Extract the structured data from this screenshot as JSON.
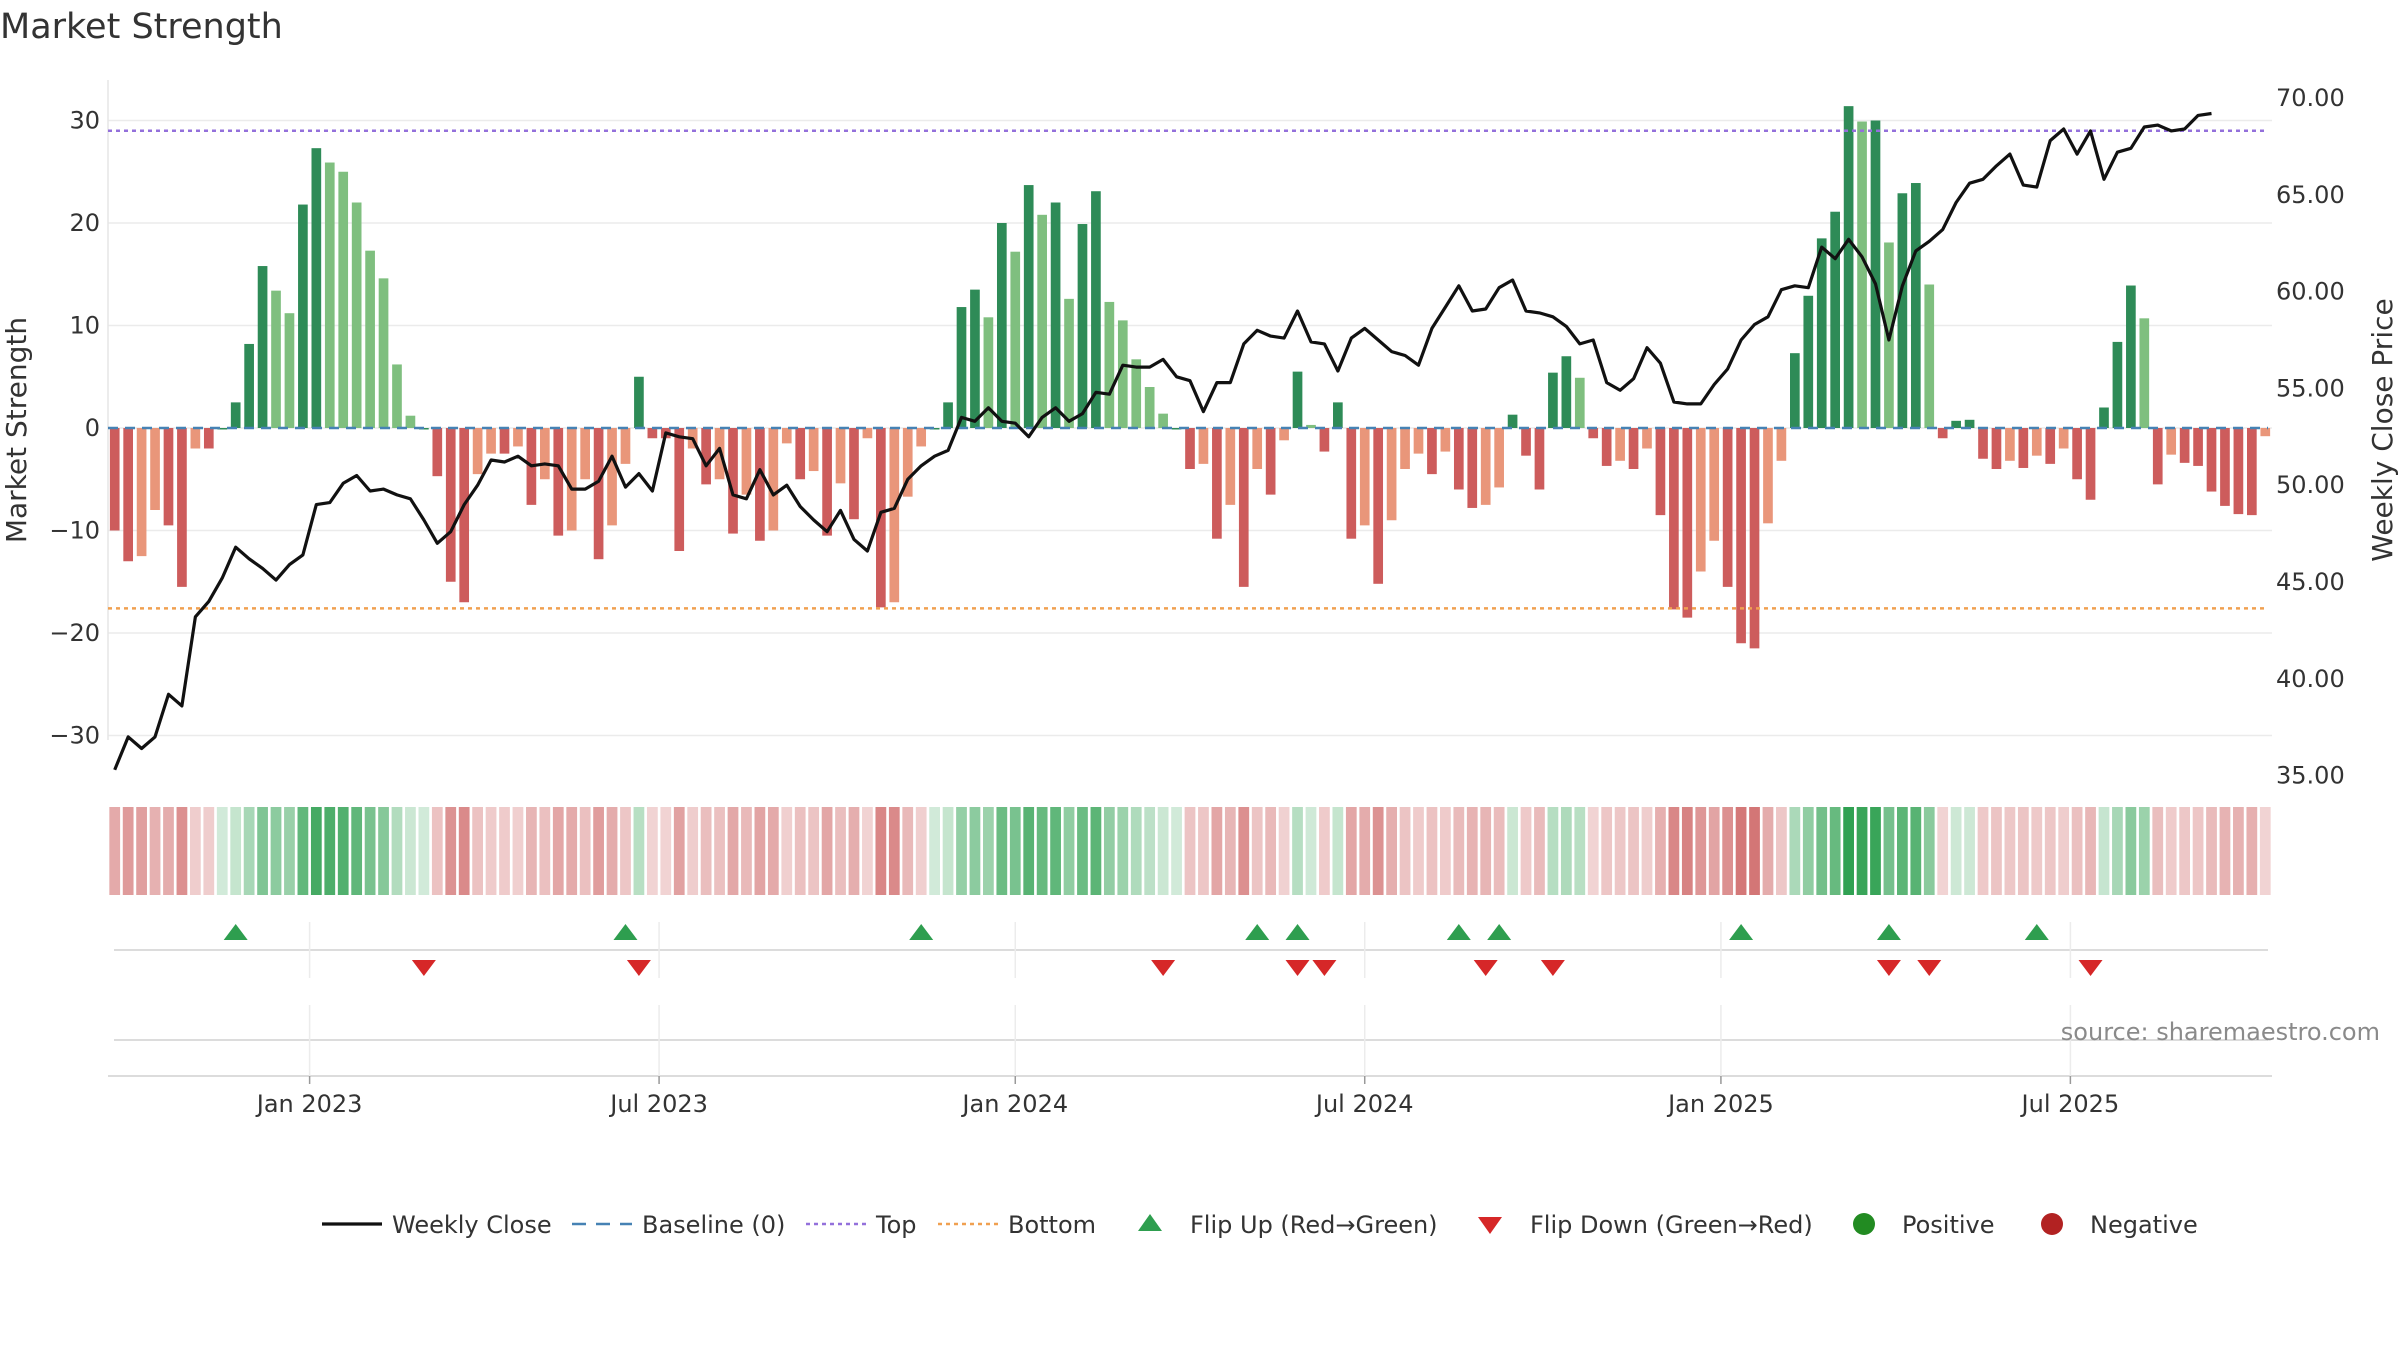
{
  "chart_data": {
    "type": "bar",
    "title": "Market Strength",
    "ylabel_left": "Market Strength",
    "ylabel_right": "Weekly Close Price",
    "ylim_left": [
      -34,
      35
    ],
    "ylim_right": [
      35,
      70
    ],
    "yticks_left": [
      30,
      20,
      10,
      0,
      -10,
      -20,
      -30
    ],
    "yticks_right": [
      "70.00",
      "65.00",
      "60.00",
      "55.00",
      "50.00",
      "45.00",
      "40.00",
      "35.00"
    ],
    "xticks": [
      {
        "label": "Jan 2023",
        "week": 14.5
      },
      {
        "label": "Jul 2023",
        "week": 40.5
      },
      {
        "label": "Jan 2024",
        "week": 67
      },
      {
        "label": "Jul 2024",
        "week": 93
      },
      {
        "label": "Jan 2025",
        "week": 119.5
      },
      {
        "label": "Jul 2025",
        "week": 145.5
      }
    ],
    "grid": true,
    "reference_lines": {
      "baseline": 0,
      "top": 29,
      "bottom": -17.6
    },
    "colors": {
      "pos_strong": "#2e8b57",
      "pos_weak": "#7fbf7f",
      "neg_strong": "#cd5c5c",
      "neg_weak": "#e9967a",
      "close_line": "#111111",
      "baseline": "#4682b4",
      "top_line": "#9370db",
      "bottom_line": "#f0a050",
      "flip_up": "#2e9e4f",
      "flip_down": "#d62728",
      "positive": "#228b22",
      "negative": "#b22222"
    },
    "strength": [
      -10,
      -13,
      -12.5,
      -8,
      -9.5,
      -15.5,
      -2,
      -2,
      0,
      2.5,
      8.2,
      15.8,
      13.4,
      11.2,
      21.8,
      27.3,
      25.9,
      25,
      22,
      17.3,
      14.6,
      6.2,
      1.2,
      0,
      -4.7,
      -15,
      -17,
      -4.5,
      -2.5,
      -2.5,
      -1.8,
      -7.5,
      -5,
      -10.5,
      -10,
      -5,
      -12.8,
      -9.5,
      -3.5,
      5,
      -1,
      -1,
      -12,
      -2,
      -5.5,
      -5,
      -10.3,
      -6.5,
      -11,
      -10,
      -1.5,
      -5,
      -4.2,
      -10.5,
      -5.4,
      -8.9,
      -1,
      -17.5,
      -17,
      -6.7,
      -1.8,
      0,
      2.5,
      11.8,
      13.5,
      10.8,
      20,
      17.2,
      23.7,
      20.8,
      22,
      12.6,
      19.9,
      23.1,
      12.3,
      10.5,
      6.7,
      4,
      1.4,
      0,
      -4,
      -3.5,
      -10.8,
      -7.5,
      -15.5,
      -4,
      -6.5,
      -1.2,
      5.5,
      0.3,
      -2.3,
      2.5,
      -10.8,
      -9.5,
      -15.2,
      -9,
      -4,
      -2.5,
      -4.5,
      -2.3,
      -6,
      -7.8,
      -7.5,
      -5.8,
      1.3,
      -2.7,
      -6,
      5.4,
      7,
      4.9,
      -1,
      -3.7,
      -3.2,
      -4,
      -2,
      -8.5,
      -17.7,
      -18.5,
      -14,
      -11,
      -15.5,
      -21,
      -21.5,
      -9.3,
      -3.2,
      7.3,
      12.9,
      18.5,
      21.1,
      31.4,
      29.9,
      30,
      18.1,
      22.9,
      23.9,
      14,
      -1,
      0.7,
      0.8,
      -3,
      -4,
      -3.2,
      -3.9,
      -2.7,
      -3.5,
      -2,
      -5,
      -7,
      2,
      8.4,
      13.9,
      10.7,
      -5.5,
      -2.6,
      -3.4,
      -3.7,
      -6.2,
      -7.6,
      -8.4,
      -8.5,
      -0.8
    ],
    "weekly_close": [
      35.3,
      37,
      36.4,
      37,
      39.2,
      38.6,
      43.2,
      44,
      45.2,
      46.8,
      46.2,
      45.7,
      45.1,
      45.9,
      46.4,
      49,
      49.1,
      50.1,
      50.5,
      49.7,
      49.8,
      49.5,
      49.3,
      48.2,
      47,
      47.6,
      49,
      50,
      51.3,
      51.2,
      51.5,
      51,
      51.1,
      51,
      49.8,
      49.8,
      50.2,
      51.5,
      49.9,
      50.6,
      49.7,
      52.7,
      52.5,
      52.4,
      51,
      51.9,
      49.5,
      49.3,
      50.8,
      49.5,
      50,
      48.9,
      48.2,
      47.6,
      48.7,
      47.2,
      46.6,
      48.6,
      48.8,
      50.3,
      51,
      51.5,
      51.8,
      53.5,
      53.3,
      54,
      53.3,
      53.2,
      52.5,
      53.5,
      54,
      53.3,
      53.7,
      54.8,
      54.7,
      56.2,
      56.1,
      56.1,
      56.5,
      55.6,
      55.4,
      53.8,
      55.3,
      55.3,
      57.3,
      58,
      57.7,
      57.6,
      59,
      57.4,
      57.3,
      55.9,
      57.6,
      58.1,
      57.5,
      56.9,
      56.7,
      56.2,
      58.1,
      59.2,
      60.3,
      59,
      59.1,
      60.2,
      60.6,
      59,
      58.9,
      58.7,
      58.2,
      57.3,
      57.5,
      55.3,
      54.9,
      55.5,
      57.1,
      56.3,
      54.3,
      54.2,
      54.2,
      55.2,
      56,
      57.5,
      58.3,
      58.7,
      60.1,
      60.3,
      60.2,
      62.3,
      61.7,
      62.7,
      61.8,
      60.4,
      57.5,
      60.3,
      62.1,
      62.6,
      63.2,
      64.6,
      65.6,
      65.8,
      66.5,
      67.1,
      65.5,
      65.4,
      67.8,
      68.4,
      67.1,
      68.3,
      65.8,
      67.2,
      67.4,
      68.5,
      68.6,
      68.3,
      68.4,
      69.1,
      69.2
    ],
    "flip_up": [
      9,
      38,
      60,
      85,
      88,
      100,
      103,
      121,
      132,
      143
    ],
    "flip_down": [
      23,
      39,
      78,
      88,
      90,
      102,
      107,
      132,
      135,
      147
    ],
    "source_text": "source: sharemaestro.com",
    "legend": [
      {
        "label": "Weekly Close",
        "kind": "line"
      },
      {
        "label": "Baseline (0)",
        "kind": "dash"
      },
      {
        "label": "Top",
        "kind": "dot-purple"
      },
      {
        "label": "Bottom",
        "kind": "dot-orange"
      },
      {
        "label": "Flip Up (Red→Green)",
        "kind": "tri-up"
      },
      {
        "label": "Flip Down (Green→Red)",
        "kind": "tri-down"
      },
      {
        "label": "Positive",
        "kind": "circle-pos"
      },
      {
        "label": "Negative",
        "kind": "circle-neg"
      }
    ]
  }
}
